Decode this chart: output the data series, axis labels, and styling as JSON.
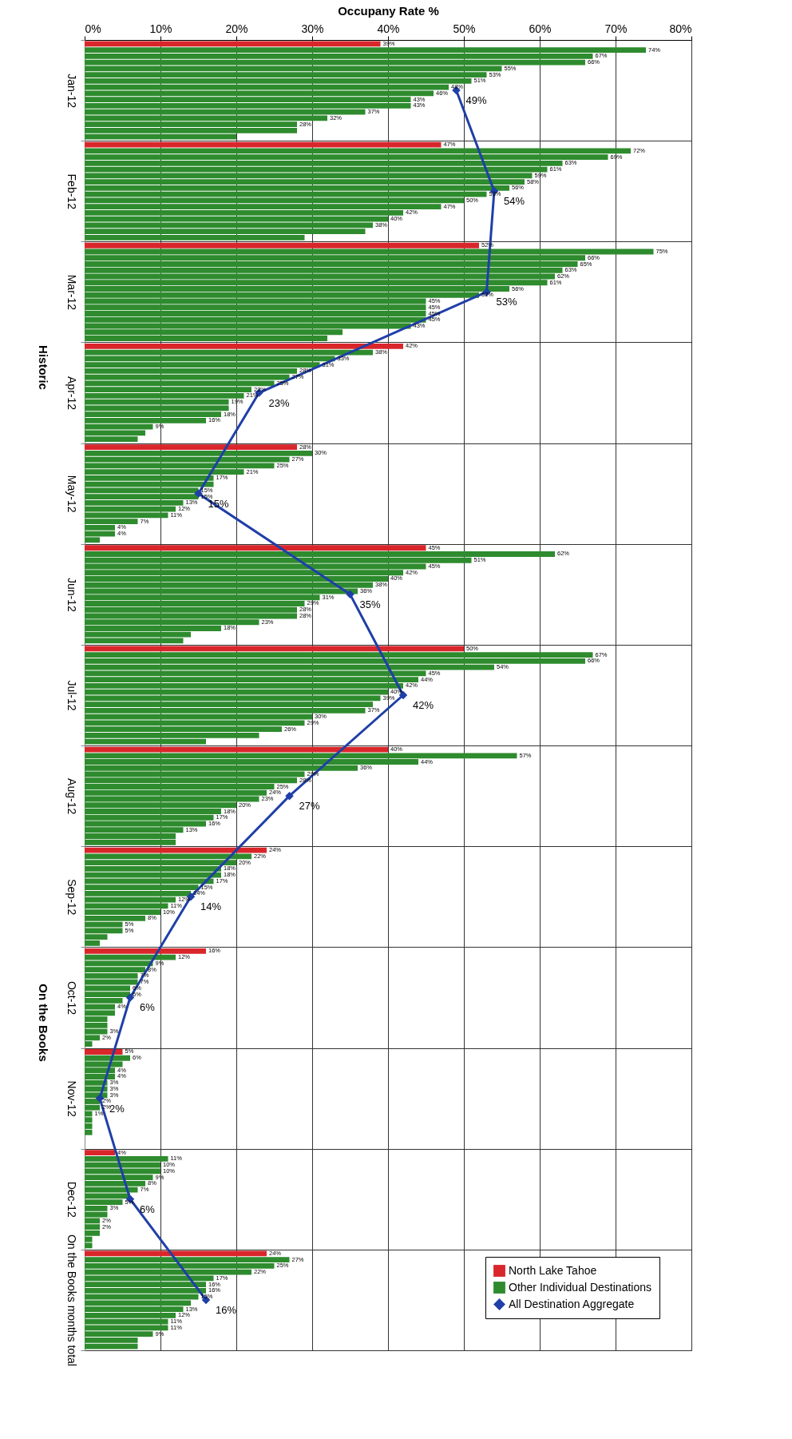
{
  "chart_data": {
    "type": "bar",
    "orientation": "horizontal",
    "xlabel": "Occupany Rate %",
    "categories": [
      "Jan-12",
      "Feb-12",
      "Mar-12",
      "Apr-12",
      "May-12",
      "Jun-12",
      "Jul-12",
      "Aug-12",
      "Sep-12",
      "Oct-12",
      "Nov-12",
      "Dec-12",
      "On the Books months total"
    ],
    "xlim": [
      0,
      80
    ],
    "xticks": [
      {
        "value": 0,
        "label": "0%"
      },
      {
        "value": 10,
        "label": "10%"
      },
      {
        "value": 20,
        "label": "20%"
      },
      {
        "value": 30,
        "label": "30%"
      },
      {
        "value": 40,
        "label": "40%"
      },
      {
        "value": 50,
        "label": "50%"
      },
      {
        "value": 60,
        "label": "60%"
      },
      {
        "value": 70,
        "label": "70%"
      },
      {
        "value": 80,
        "label": "80%"
      }
    ],
    "grid": true,
    "legend": "bottom right",
    "marker": "diamond",
    "annotations": [
      "Historic",
      "On the Books"
    ],
    "series": [
      {
        "name": "North Lake Tahoe",
        "color": "#d9262b",
        "values": [
          39,
          47,
          52,
          42,
          28,
          45,
          50,
          40,
          24,
          16,
          5,
          4,
          24
        ],
        "value_labels": [
          "39%",
          "47%",
          "52%",
          "42%",
          "28%",
          "45%",
          "50%",
          "40%",
          "24%",
          "16%",
          "5%",
          "4%",
          "24%"
        ]
      },
      {
        "name": "Other Individual Destinations",
        "color": "#2e8b2e",
        "values": [
          74,
          72,
          75,
          38,
          30,
          62,
          67,
          57,
          22,
          12,
          6,
          11,
          27
        ],
        "value_labels": [
          "74%",
          "72%",
          "75%",
          "38%",
          "30%",
          "62%",
          "67%",
          "57%",
          "22%",
          "12%",
          "6%",
          "11%",
          "27%"
        ]
      },
      {
        "color": "#2e8b2e",
        "values": [
          67,
          69,
          66,
          33,
          27,
          51,
          66,
          44,
          20,
          9,
          5,
          10,
          25
        ],
        "value_labels": [
          "67%",
          "69%",
          "66%",
          "33%",
          "27%",
          "51%",
          "66%",
          "44%",
          "20%",
          "9%",
          null,
          "10%",
          "25%"
        ]
      },
      {
        "color": "#2e8b2e",
        "values": [
          66,
          63,
          65,
          31,
          25,
          45,
          54,
          36,
          18,
          8,
          4,
          10,
          22
        ],
        "value_labels": [
          "66%",
          "63%",
          "65%",
          "31%",
          "25%",
          "45%",
          "54%",
          "36%",
          "18%",
          "8%",
          "4%",
          "10%",
          "22%"
        ]
      },
      {
        "color": "#2e8b2e",
        "values": [
          55,
          61,
          63,
          28,
          21,
          42,
          45,
          29,
          18,
          7,
          4,
          9,
          17
        ],
        "value_labels": [
          "55%",
          "61%",
          "63%",
          "28%",
          "21%",
          "42%",
          "45%",
          "29%",
          "18%",
          "7%",
          "4%",
          "9%",
          "17%"
        ]
      },
      {
        "color": "#2e8b2e",
        "values": [
          53,
          59,
          62,
          27,
          17,
          40,
          44,
          28,
          17,
          7,
          3,
          8,
          16
        ],
        "value_labels": [
          "53%",
          "59%",
          "62%",
          "27%",
          "17%",
          "40%",
          "44%",
          "28%",
          "17%",
          "7%",
          "3%",
          "8%",
          "16%"
        ]
      },
      {
        "color": "#2e8b2e",
        "values": [
          51,
          58,
          61,
          25,
          17,
          38,
          42,
          25,
          15,
          6,
          3,
          7,
          16
        ],
        "value_labels": [
          "51%",
          "58%",
          "61%",
          "25%",
          null,
          "38%",
          "42%",
          "25%",
          "15%",
          "6%",
          "3%",
          "7%",
          "16%"
        ]
      },
      {
        "color": "#2e8b2e",
        "values": [
          48,
          56,
          56,
          22,
          15,
          36,
          40,
          24,
          14,
          6,
          3,
          6,
          15
        ],
        "value_labels": [
          "48%",
          "56%",
          "56%",
          "22%",
          "15%",
          "36%",
          "40%",
          "24%",
          "14%",
          "6%",
          "3%",
          null,
          "15%"
        ]
      },
      {
        "color": "#2e8b2e",
        "values": [
          46,
          53,
          52,
          21,
          15,
          31,
          39,
          23,
          12,
          5,
          2,
          5,
          14
        ],
        "value_labels": [
          "46%",
          "53%",
          "52%",
          "21%",
          "15%",
          "31%",
          "39%",
          "23%",
          "12%",
          null,
          "2%",
          "5%",
          null
        ]
      },
      {
        "color": "#2e8b2e",
        "values": [
          43,
          50,
          45,
          19,
          13,
          29,
          38,
          20,
          11,
          4,
          2,
          3,
          13
        ],
        "value_labels": [
          "43%",
          "50%",
          "45%",
          "19%",
          "13%",
          "29%",
          null,
          "20%",
          "11%",
          "4%",
          "2%",
          "3%",
          "13%"
        ]
      },
      {
        "color": "#2e8b2e",
        "values": [
          43,
          47,
          45,
          19,
          12,
          28,
          37,
          18,
          10,
          4,
          1,
          3,
          12
        ],
        "value_labels": [
          "43%",
          "47%",
          "45%",
          null,
          "12%",
          "28%",
          "37%",
          "18%",
          "10%",
          null,
          "1%",
          null,
          "12%"
        ]
      },
      {
        "color": "#2e8b2e",
        "values": [
          37,
          42,
          45,
          18,
          11,
          28,
          30,
          17,
          8,
          3,
          1,
          2,
          11
        ],
        "value_labels": [
          "37%",
          "42%",
          "45%",
          "18%",
          "11%",
          "28%",
          "30%",
          "17%",
          "8%",
          null,
          null,
          "2%",
          "11%"
        ]
      },
      {
        "color": "#2e8b2e",
        "values": [
          32,
          40,
          45,
          16,
          7,
          23,
          29,
          16,
          5,
          3,
          1,
          2,
          11
        ],
        "value_labels": [
          "32%",
          "40%",
          "45%",
          "16%",
          "7%",
          "23%",
          "29%",
          "16%",
          "5%",
          null,
          null,
          "2%",
          "11%"
        ]
      },
      {
        "color": "#2e8b2e",
        "values": [
          28,
          38,
          43,
          9,
          4,
          18,
          26,
          13,
          5,
          3,
          1,
          2,
          9
        ],
        "value_labels": [
          "28%",
          "38%",
          "43%",
          "9%",
          "4%",
          "18%",
          "26%",
          "13%",
          "5%",
          "3%",
          null,
          null,
          "9%"
        ]
      },
      {
        "color": "#2e8b2e",
        "values": [
          28,
          37,
          34,
          8,
          4,
          14,
          23,
          12,
          3,
          2,
          0,
          1,
          7
        ],
        "value_labels": [
          null,
          null,
          null,
          null,
          "4%",
          null,
          null,
          null,
          null,
          "2%",
          null,
          null,
          null
        ]
      },
      {
        "color": "#2e8b2e",
        "values": [
          20,
          29,
          32,
          7,
          2,
          13,
          16,
          12,
          2,
          1,
          0,
          1,
          7
        ]
      },
      {
        "name": "All Destination Aggregate",
        "type": "line",
        "color": "#1f3fa8",
        "values": [
          49,
          54,
          53,
          23,
          15,
          35,
          42,
          27,
          14,
          6,
          2,
          6,
          16
        ],
        "value_labels": [
          "49%",
          "54%",
          "53%",
          "23%",
          "15%",
          "35%",
          "42%",
          "27%",
          "14%",
          "6%",
          "2%",
          "6%",
          "16%"
        ]
      }
    ]
  }
}
